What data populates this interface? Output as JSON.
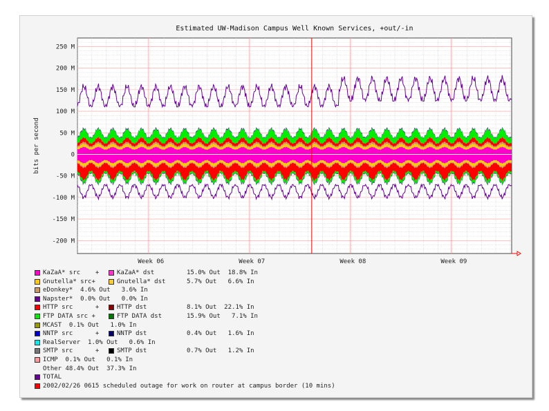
{
  "chart_data": {
    "type": "area",
    "title": "Estimated UW-Madison Campus Well Known Services, +out/-in",
    "xlabel": "",
    "ylabel": "bits per second",
    "ylim": [
      -230,
      270
    ],
    "y_ticks": [
      250,
      200,
      150,
      100,
      50,
      0,
      -50,
      -100,
      -150,
      -200
    ],
    "y_tick_labels": [
      "250 M",
      "200 M",
      "150 M",
      "100 M",
      "50 M",
      "0",
      "-50 M",
      "-100 M",
      "-150 M",
      "-200 M"
    ],
    "x_weeks": [
      5.3,
      9.6
    ],
    "x_ticks": [
      6,
      7,
      8,
      9
    ],
    "x_tick_labels": [
      "Week 06",
      "Week 07",
      "Week 08",
      "Week 09"
    ],
    "marker_week": 7.62,
    "grid": true,
    "legend_position": "bottom",
    "daily_cycle": true,
    "series": [
      {
        "name": "KaZaA* src + KaZaA* dst",
        "color": "#ff00cc",
        "out_mean": 15,
        "in_mean": 18
      },
      {
        "name": "Gnutella* src + Gnutella* dst",
        "color": "#ffcc00",
        "out_mean": 6,
        "in_mean": 6
      },
      {
        "name": "eDonkey*",
        "color": "#cc9966",
        "out_mean": 4,
        "in_mean": 3
      },
      {
        "name": "HTTP src + HTTP dst",
        "color": "#ff0000",
        "out_mean": 9,
        "in_mean": 25
      },
      {
        "name": "FTP DATA src + FTP DATA dst",
        "color": "#00ee00",
        "out_mean": 17,
        "in_mean": 6
      },
      {
        "name": "NNTP src + NNTP dst",
        "color": "#0000aa",
        "out_mean": 1,
        "in_mean": 1
      },
      {
        "name": "SMTP src + SMTP dst",
        "color": "#555555",
        "out_mean": 1,
        "in_mean": 1
      },
      {
        "name": "TOTAL",
        "color": "#660099",
        "out_mean": 150,
        "in_mean": 95,
        "kind": "line"
      }
    ]
  },
  "legend": [
    {
      "c1": "#ff00cc",
      "t1": "KaZaA* src    +",
      "c2": "#ff33cc",
      "t2": "KaZaA* dst",
      "s": "15.0% Out  18.8% In"
    },
    {
      "c1": "#ffcc00",
      "t1": "Gnutella* src+",
      "c2": "#ffcc33",
      "t2": "Gnutella* dst",
      "s": "5.7% Out   6.6% In"
    },
    {
      "c1": "#cc9966",
      "t1": "eDonkey*  4.6% Out   3.6% In"
    },
    {
      "c1": "#660099",
      "t1": "Napster*  0.0% Out   0.0% In"
    },
    {
      "c1": "#ff0000",
      "t1": "HTTP src      +",
      "c2": "#880000",
      "t2": "HTTP dst",
      "s": "8.1% Out  22.1% In"
    },
    {
      "c1": "#00ee00",
      "t1": "FTP DATA src +",
      "c2": "#007700",
      "t2": "FTP DATA dst",
      "s": "15.9% Out   7.1% In"
    },
    {
      "c1": "#999900",
      "t1": "MCAST  0.1% Out   1.0% In"
    },
    {
      "c1": "#0000cc",
      "t1": "NNTP src      +",
      "c2": "#000066",
      "t2": "NNTP dst",
      "s": "0.4% Out   1.6% In"
    },
    {
      "c1": "#00eeee",
      "t1": "RealServer  1.0% Out   0.6% In"
    },
    {
      "c1": "#777777",
      "t1": "SMTP src      +",
      "c2": "#000000",
      "t2": "SMTP dst",
      "s": "0.7% Out   1.2% In"
    },
    {
      "c1": "#ff9999",
      "t1": "ICMP  0.1% Out   0.1% In"
    },
    {
      "t1": "Other 48.4% Out  37.3% In"
    },
    {
      "c1": "#660099",
      "t1": "TOTAL"
    },
    {
      "c1": "#ff0000",
      "t1": "2002/02/26 0615 scheduled outage for work on router at campus border (10 mins)"
    }
  ]
}
